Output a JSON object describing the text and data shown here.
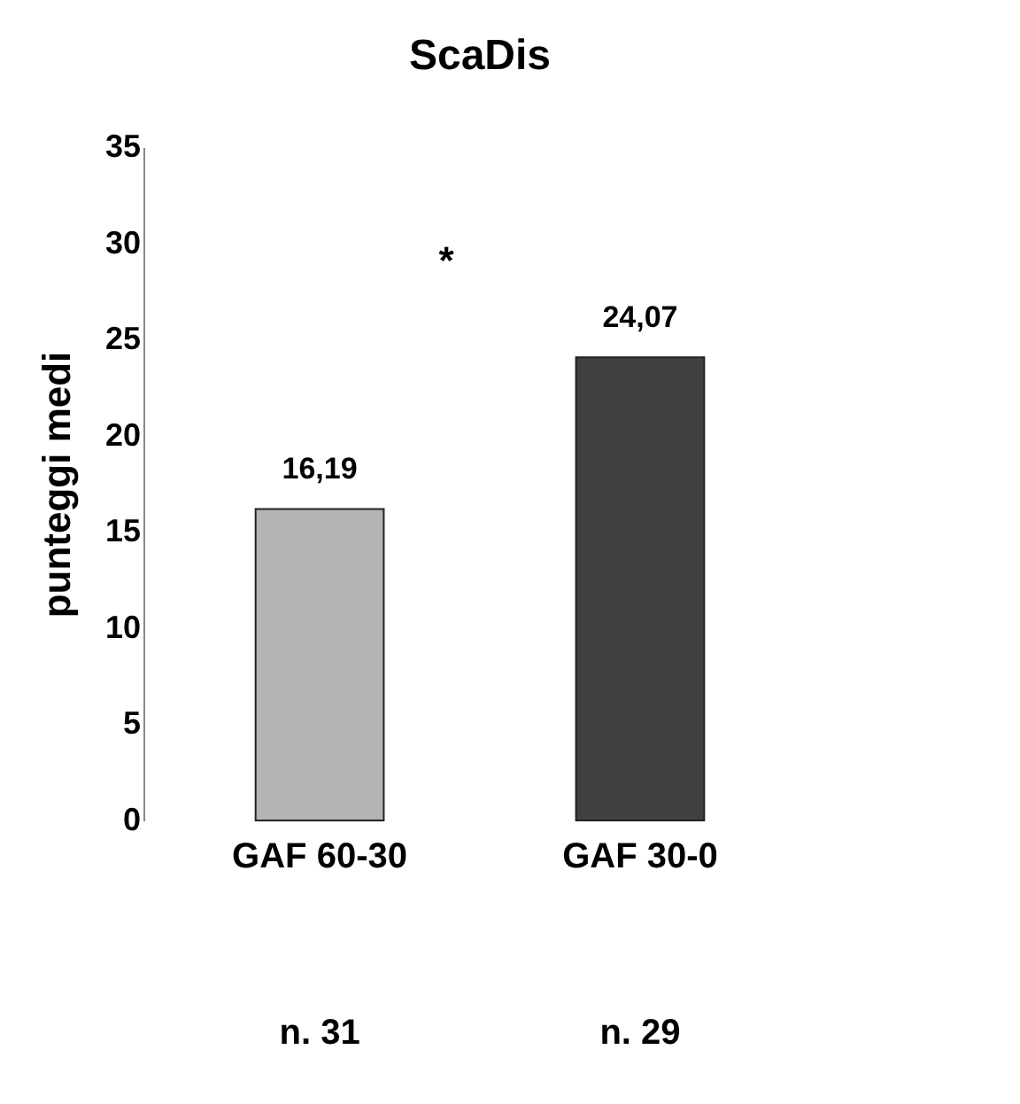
{
  "chart_data": {
    "type": "bar",
    "title": "ScaDis",
    "ylabel": "punteggi medi",
    "categories": [
      "GAF 60-30",
      "GAF 30-0"
    ],
    "values": [
      16.19,
      24.07
    ],
    "value_labels": [
      "16,19",
      "24,07"
    ],
    "colors": [
      "#b4b4b4",
      "#404040"
    ],
    "ylim": [
      0,
      35
    ],
    "yticks": [
      0,
      5,
      10,
      15,
      20,
      25,
      30,
      35
    ],
    "grid": false,
    "legend": false,
    "annotations": [
      "*",
      "n. 31",
      "n. 29"
    ]
  }
}
